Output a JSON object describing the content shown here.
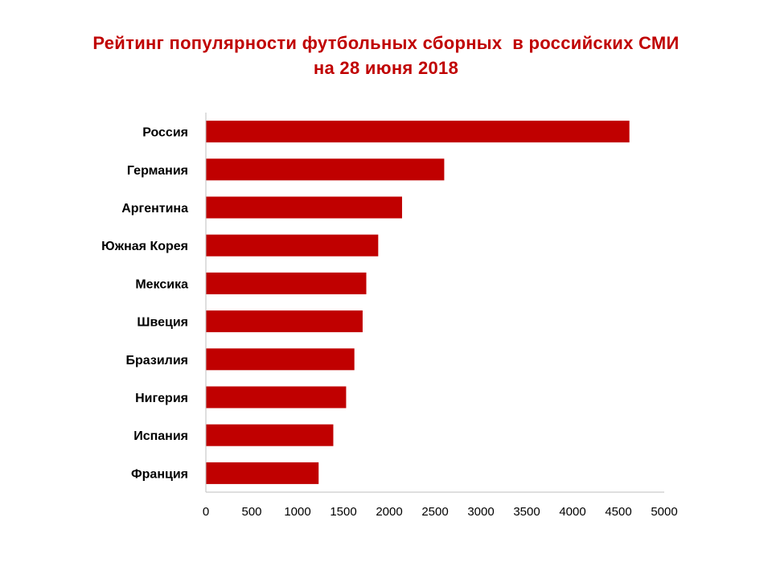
{
  "colors": {
    "title": "#c00000",
    "bar": "#c00000",
    "axis": "#bfbfbf"
  },
  "chart_data": {
    "type": "bar",
    "orientation": "horizontal",
    "title": [
      "Рейтинг популярности футбольных сборных  в российских СМИ",
      "на 28 июня 2018"
    ],
    "categories": [
      "Россия",
      "Германия",
      "Аргентина",
      "Южная Корея",
      "Мексика",
      "Швеция",
      "Бразилия",
      "Нигерия",
      "Испания",
      "Франция"
    ],
    "values": [
      4620,
      2600,
      2140,
      1880,
      1750,
      1710,
      1620,
      1530,
      1390,
      1230
    ],
    "xlim": [
      0,
      5000
    ],
    "xticks": [
      "0",
      "500",
      "1000",
      "1500",
      "2000",
      "2500",
      "3000",
      "3500",
      "4000",
      "4500",
      "5000"
    ],
    "grid": false,
    "legend": "none"
  }
}
